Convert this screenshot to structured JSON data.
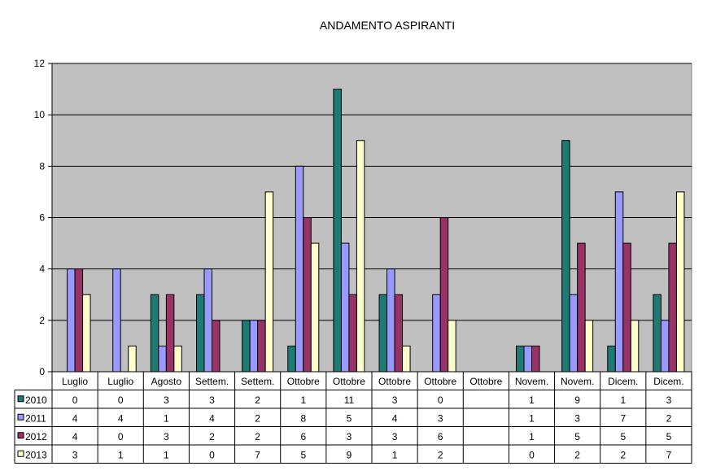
{
  "chart_data": {
    "type": "bar",
    "title": "ANDAMENTO ASPIRANTI",
    "xlabel": "",
    "ylabel": "",
    "ylim": [
      0,
      12
    ],
    "yticks": [
      0,
      2,
      4,
      6,
      8,
      10,
      12
    ],
    "grid": true,
    "legend": "data-table-left",
    "plot_background": "#c0c0c0",
    "categories": [
      "Luglio",
      "Luglio",
      "Agosto",
      "Settem.",
      "Settem.",
      "Ottobre",
      "Ottobre",
      "Ottobre",
      "Ottobre",
      "Ottobre",
      "Novem.",
      "Novem.",
      "Dicem.",
      "Dicem."
    ],
    "series": [
      {
        "name": "2010",
        "color": "#1f7a74",
        "values": [
          0,
          0,
          3,
          3,
          2,
          1,
          11,
          3,
          0,
          null,
          1,
          9,
          1,
          3
        ]
      },
      {
        "name": "2011",
        "color": "#9999ff",
        "values": [
          4,
          4,
          1,
          4,
          2,
          8,
          5,
          4,
          3,
          null,
          1,
          3,
          7,
          2
        ]
      },
      {
        "name": "2012",
        "color": "#993366",
        "values": [
          4,
          0,
          3,
          2,
          2,
          6,
          3,
          3,
          6,
          null,
          1,
          5,
          5,
          5
        ]
      },
      {
        "name": "2013",
        "color": "#ffffcc",
        "values": [
          3,
          1,
          1,
          0,
          7,
          5,
          9,
          1,
          2,
          null,
          0,
          2,
          2,
          7
        ]
      }
    ]
  }
}
